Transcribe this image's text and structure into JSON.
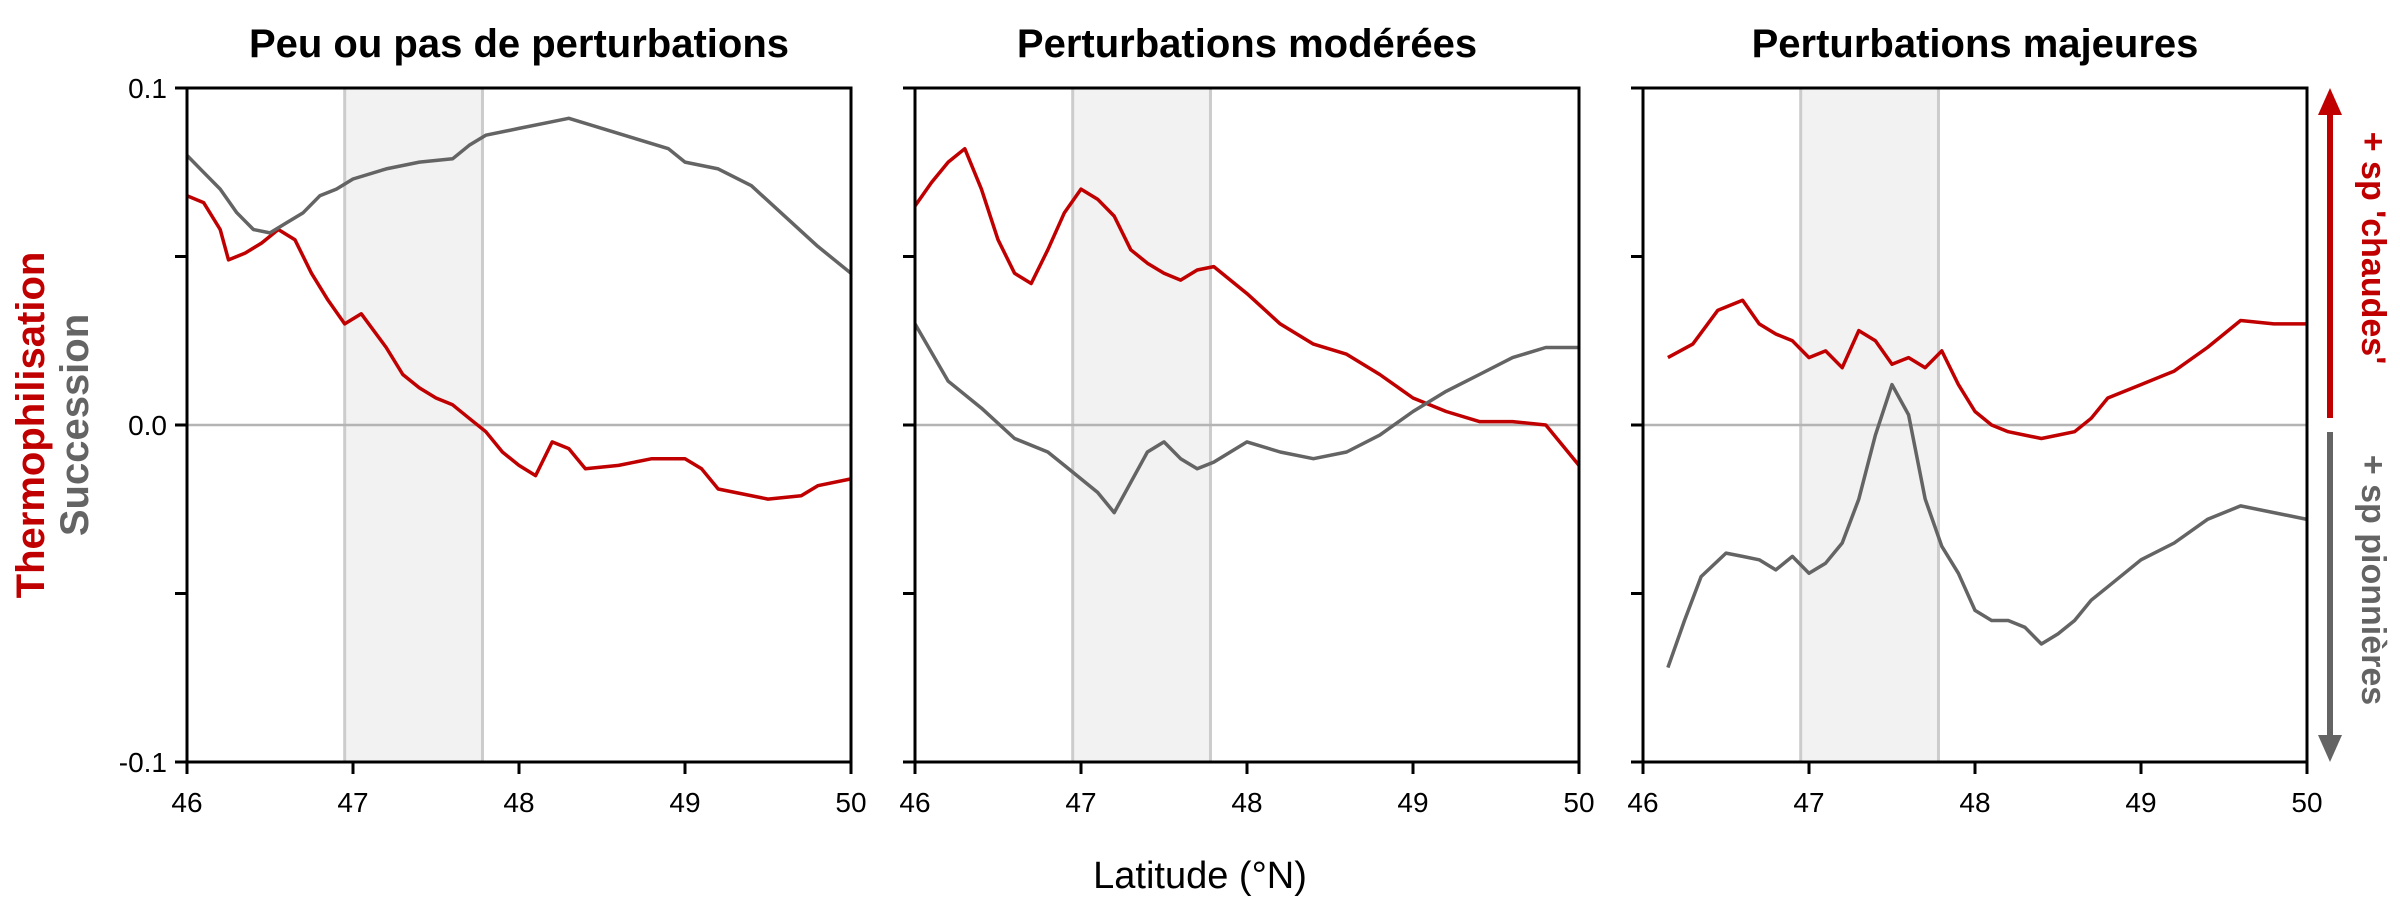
{
  "chart_data": {
    "type": "line",
    "xlabel": "Latitude (°N)",
    "ylabel_series": [
      "Thermophilisation",
      "Succession"
    ],
    "right_annotations": {
      "up": "+ sp 'chaudes'",
      "down": "+ sp pionnières"
    },
    "ylim": [
      -0.1,
      0.1
    ],
    "yticks": [
      -0.1,
      -0.05,
      0.0,
      0.05,
      0.1
    ],
    "ytick_labels": [
      "-0.1",
      "",
      "0.0",
      "",
      "0.1"
    ],
    "xlim": [
      46,
      50
    ],
    "xticks": [
      46,
      47,
      48,
      49,
      50
    ],
    "xtick_labels": [
      "46",
      "47",
      "48",
      "49",
      "50"
    ],
    "shaded_band": [
      46.95,
      47.78
    ],
    "colors": {
      "thermophilisation": "#c00000",
      "succession": "#646464",
      "band": "#f2f2f2",
      "band_edge": "#cccccc",
      "zero": "#b4b4b4"
    },
    "panels": [
      {
        "title": "Peu ou pas de perturbations",
        "series": [
          {
            "name": "Thermophilisation",
            "x": [
              46.0,
              46.1,
              46.2,
              46.25,
              46.35,
              46.45,
              46.55,
              46.65,
              46.75,
              46.85,
              46.95,
              47.05,
              47.2,
              47.3,
              47.4,
              47.5,
              47.6,
              47.7,
              47.8,
              47.9,
              48.0,
              48.1,
              48.2,
              48.3,
              48.4,
              48.6,
              48.8,
              49.0,
              49.1,
              49.2,
              49.3,
              49.5,
              49.7,
              49.8,
              50.0
            ],
            "y": [
              0.068,
              0.066,
              0.058,
              0.049,
              0.051,
              0.054,
              0.058,
              0.055,
              0.045,
              0.037,
              0.03,
              0.033,
              0.023,
              0.015,
              0.011,
              0.008,
              0.006,
              0.002,
              -0.002,
              -0.008,
              -0.012,
              -0.015,
              -0.005,
              -0.007,
              -0.013,
              -0.012,
              -0.01,
              -0.01,
              -0.013,
              -0.019,
              -0.02,
              -0.022,
              -0.021,
              -0.018,
              -0.016
            ]
          },
          {
            "name": "Succession",
            "x": [
              46.0,
              46.1,
              46.2,
              46.3,
              46.4,
              46.5,
              46.6,
              46.7,
              46.8,
              46.9,
              47.0,
              47.2,
              47.4,
              47.6,
              47.7,
              47.8,
              48.0,
              48.2,
              48.3,
              48.5,
              48.7,
              48.9,
              49.0,
              49.2,
              49.4,
              49.6,
              49.8,
              50.0
            ],
            "y": [
              0.08,
              0.075,
              0.07,
              0.063,
              0.058,
              0.057,
              0.06,
              0.063,
              0.068,
              0.07,
              0.073,
              0.076,
              0.078,
              0.079,
              0.083,
              0.086,
              0.088,
              0.09,
              0.091,
              0.088,
              0.085,
              0.082,
              0.078,
              0.076,
              0.071,
              0.062,
              0.053,
              0.045
            ]
          }
        ]
      },
      {
        "title": "Perturbations modérées",
        "series": [
          {
            "name": "Thermophilisation",
            "x": [
              46.0,
              46.1,
              46.2,
              46.3,
              46.4,
              46.5,
              46.6,
              46.7,
              46.8,
              46.9,
              47.0,
              47.1,
              47.2,
              47.3,
              47.4,
              47.5,
              47.6,
              47.7,
              47.8,
              48.0,
              48.2,
              48.4,
              48.6,
              48.8,
              49.0,
              49.2,
              49.4,
              49.6,
              49.8,
              50.0
            ],
            "y": [
              0.065,
              0.072,
              0.078,
              0.082,
              0.07,
              0.055,
              0.045,
              0.042,
              0.052,
              0.063,
              0.07,
              0.067,
              0.062,
              0.052,
              0.048,
              0.045,
              0.043,
              0.046,
              0.047,
              0.039,
              0.03,
              0.024,
              0.021,
              0.015,
              0.008,
              0.004,
              0.001,
              0.001,
              0.0,
              -0.012
            ]
          },
          {
            "name": "Succession",
            "x": [
              46.0,
              46.2,
              46.4,
              46.6,
              46.8,
              46.9,
              47.0,
              47.1,
              47.2,
              47.3,
              47.4,
              47.5,
              47.6,
              47.7,
              47.8,
              48.0,
              48.2,
              48.4,
              48.6,
              48.8,
              49.0,
              49.2,
              49.4,
              49.6,
              49.8,
              50.0
            ],
            "y": [
              0.03,
              0.013,
              0.005,
              -0.004,
              -0.008,
              -0.012,
              -0.016,
              -0.02,
              -0.026,
              -0.017,
              -0.008,
              -0.005,
              -0.01,
              -0.013,
              -0.011,
              -0.005,
              -0.008,
              -0.01,
              -0.008,
              -0.003,
              0.004,
              0.01,
              0.015,
              0.02,
              0.023,
              0.023
            ]
          }
        ]
      },
      {
        "title": "Perturbations majeures",
        "series": [
          {
            "name": "Thermophilisation",
            "x": [
              46.15,
              46.3,
              46.45,
              46.6,
              46.7,
              46.8,
              46.9,
              47.0,
              47.1,
              47.2,
              47.3,
              47.4,
              47.5,
              47.6,
              47.7,
              47.8,
              47.9,
              48.0,
              48.1,
              48.2,
              48.3,
              48.4,
              48.5,
              48.6,
              48.7,
              48.8,
              49.0,
              49.2,
              49.4,
              49.6,
              49.8,
              50.0
            ],
            "y": [
              0.02,
              0.024,
              0.034,
              0.037,
              0.03,
              0.027,
              0.025,
              0.02,
              0.022,
              0.017,
              0.028,
              0.025,
              0.018,
              0.02,
              0.017,
              0.022,
              0.012,
              0.004,
              0.0,
              -0.002,
              -0.003,
              -0.004,
              -0.003,
              -0.002,
              0.002,
              0.008,
              0.012,
              0.016,
              0.023,
              0.031,
              0.03,
              0.03
            ]
          },
          {
            "name": "Succession",
            "x": [
              46.15,
              46.25,
              46.35,
              46.5,
              46.6,
              46.7,
              46.8,
              46.9,
              47.0,
              47.1,
              47.2,
              47.3,
              47.4,
              47.5,
              47.6,
              47.7,
              47.8,
              47.9,
              48.0,
              48.1,
              48.2,
              48.3,
              48.4,
              48.5,
              48.6,
              48.7,
              48.8,
              49.0,
              49.2,
              49.4,
              49.6,
              49.8,
              50.0
            ],
            "y": [
              -0.072,
              -0.058,
              -0.045,
              -0.038,
              -0.039,
              -0.04,
              -0.043,
              -0.039,
              -0.044,
              -0.041,
              -0.035,
              -0.022,
              -0.003,
              0.012,
              0.003,
              -0.022,
              -0.036,
              -0.044,
              -0.055,
              -0.058,
              -0.058,
              -0.06,
              -0.065,
              -0.062,
              -0.058,
              -0.052,
              -0.048,
              -0.04,
              -0.035,
              -0.028,
              -0.024,
              -0.026,
              -0.028
            ]
          }
        ]
      }
    ]
  }
}
